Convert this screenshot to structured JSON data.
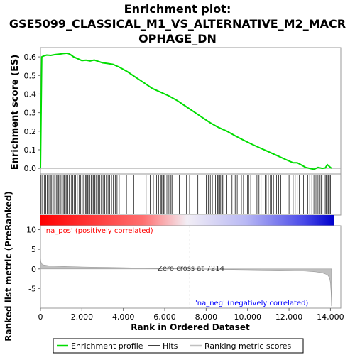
{
  "chart_data": {
    "type": "line",
    "title_lines": [
      "Enrichment plot:",
      "GSE5099_CLASSICAL_M1_VS_ALTERNATIVE_M2_MACR",
      "OPHAGE_DN"
    ],
    "es_panel": {
      "ylabel": "Enrichment score (ES)",
      "ylim": [
        -0.03,
        0.65
      ],
      "yticks": [
        0.0,
        0.1,
        0.2,
        0.3,
        0.4,
        0.5,
        0.6
      ],
      "ytick_labels": [
        "0.0",
        "0.1",
        "0.2",
        "0.3",
        "0.4",
        "0.5",
        "0.6"
      ],
      "series": [
        {
          "name": "Enrichment profile",
          "color": "#00dd00",
          "x": [
            0,
            60,
            150,
            300,
            500,
            700,
            900,
            1100,
            1300,
            1450,
            1600,
            1800,
            2000,
            2200,
            2400,
            2600,
            2800,
            3000,
            3200,
            3500,
            3800,
            4200,
            4600,
            5000,
            5400,
            5800,
            6200,
            6600,
            7000,
            7400,
            7800,
            8200,
            8600,
            9000,
            9400,
            9800,
            10200,
            10600,
            11000,
            11400,
            11800,
            12200,
            12400,
            12600,
            12800,
            13000,
            13200,
            13400,
            13600,
            13750,
            13850,
            13950,
            14050
          ],
          "y": [
            0.0,
            0.6,
            0.605,
            0.61,
            0.608,
            0.612,
            0.615,
            0.618,
            0.62,
            0.612,
            0.6,
            0.59,
            0.58,
            0.582,
            0.578,
            0.583,
            0.575,
            0.568,
            0.565,
            0.56,
            0.545,
            0.52,
            0.49,
            0.46,
            0.43,
            0.41,
            0.39,
            0.365,
            0.335,
            0.305,
            0.275,
            0.245,
            0.22,
            0.2,
            0.175,
            0.152,
            0.13,
            0.11,
            0.09,
            0.07,
            0.05,
            0.03,
            0.03,
            0.018,
            0.005,
            0.0,
            -0.005,
            0.005,
            0.0,
            0.002,
            0.02,
            0.01,
            0.0
          ]
        }
      ]
    },
    "hits": {
      "name": "Hits",
      "color": "#000000",
      "positions": [
        30,
        100,
        180,
        260,
        330,
        410,
        480,
        520,
        590,
        650,
        700,
        760,
        820,
        880,
        930,
        990,
        1050,
        1100,
        1150,
        1200,
        1260,
        1320,
        1380,
        1430,
        1500,
        1560,
        1620,
        1700,
        1780,
        1860,
        1930,
        2000,
        2060,
        2110,
        2170,
        2220,
        2280,
        2330,
        2390,
        2450,
        2500,
        2560,
        2620,
        2680,
        2740,
        2800,
        2870,
        2940,
        3020,
        3100,
        3180,
        3260,
        3340,
        3430,
        3520,
        3610,
        3700,
        3800,
        4150,
        4500,
        5100,
        5300,
        5450,
        5600,
        5700,
        5800,
        5850,
        5900,
        5950,
        6000,
        6100,
        6200,
        6300,
        6350,
        6700,
        7050,
        7200,
        7600,
        7700,
        7800,
        7900,
        8000,
        8100,
        8200,
        8300,
        8450,
        8550,
        8600,
        8650,
        8700,
        8750,
        8800,
        8850,
        9000,
        9100,
        9200,
        9250,
        9400,
        9500,
        9700,
        9800,
        10000,
        10050,
        10150,
        10450,
        10550,
        10650,
        10750,
        10850,
        10900,
        11000,
        11100,
        11150,
        11250,
        11400,
        11500,
        11600,
        12000,
        12200,
        12300,
        12400,
        12500,
        12700,
        12900,
        13000,
        13100,
        13200,
        13300,
        13400,
        13450,
        13500,
        13550,
        13600,
        13700,
        13750,
        13800,
        13850,
        13900,
        13950,
        14000
      ]
    },
    "metric_panel": {
      "name": "Ranking metric scores",
      "color": "#c0c0c0",
      "ylabel": "Ranked list metric (PreRanked)",
      "xlabel": "Rank in Ordered Dataset",
      "xlim": [
        0,
        14500
      ],
      "ylim": [
        -10,
        11
      ],
      "yticks": [
        -5,
        0,
        5,
        10
      ],
      "ytick_labels": [
        "-5",
        "0",
        "5",
        "10"
      ],
      "xticks": [
        0,
        2000,
        4000,
        6000,
        8000,
        10000,
        12000,
        14000
      ],
      "xtick_labels": [
        "0",
        "2,000",
        "4,000",
        "6,000",
        "8,000",
        "10,000",
        "12,000",
        "14,000"
      ],
      "x": [
        0,
        20,
        60,
        150,
        400,
        1000,
        2000,
        3000,
        4000,
        5000,
        6000,
        7214,
        8000,
        9000,
        10000,
        11000,
        12000,
        12800,
        13300,
        13600,
        13850,
        13950,
        14000,
        14030,
        14050
      ],
      "y": [
        3.0,
        1.8,
        1.3,
        1.0,
        0.8,
        0.65,
        0.5,
        0.4,
        0.3,
        0.2,
        0.1,
        0.0,
        -0.08,
        -0.15,
        -0.22,
        -0.3,
        -0.4,
        -0.55,
        -0.75,
        -1.0,
        -1.5,
        -2.2,
        -3.5,
        -6.0,
        -9.5
      ],
      "zero_cross": 7214,
      "annotations": {
        "pos": "'na_pos' (positively correlated)",
        "neg": "'na_neg' (negatively correlated)",
        "zero": "Zero cross at 7214"
      }
    },
    "legend": {
      "placement": "bottom",
      "entries": [
        {
          "label": "Enrichment profile",
          "color": "#00dd00"
        },
        {
          "label": "Hits",
          "color": "#000000"
        },
        {
          "label": "Ranking metric scores",
          "color": "#c0c0c0"
        }
      ]
    },
    "grid": false
  }
}
